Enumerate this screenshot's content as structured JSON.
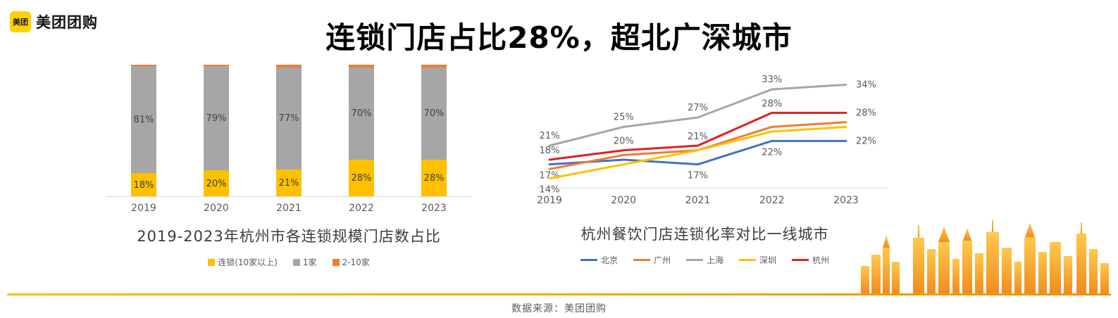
{
  "header": {
    "logo_badge": "美团",
    "logo_text": "美团团购",
    "title": "连锁门店占比28%，超北广深城市"
  },
  "footer": {
    "source": "数据来源：美团团购"
  },
  "colors": {
    "brand_yellow": "#FFD100",
    "bar_yellow": "#FFC000",
    "bar_gray": "#A6A6A6",
    "bar_orange": "#ED7D31",
    "line_blue": "#4472C4",
    "line_orange": "#ED7D31",
    "line_gray": "#A6A6A6",
    "line_yellow": "#FFC000",
    "line_red": "#E02020",
    "axis_gray": "#D9D9D9"
  },
  "chart_data": [
    {
      "type": "bar",
      "title": "2019-2023年杭州市各连锁规模门店数占比",
      "categories": [
        "2019",
        "2020",
        "2021",
        "2022",
        "2023"
      ],
      "stacked": true,
      "ylim": [
        0,
        100
      ],
      "grid": false,
      "legend_position": "bottom",
      "series": [
        {
          "name": "连锁(10家以上)",
          "color": "#FFC000",
          "values": [
            18,
            20,
            21,
            28,
            28
          ]
        },
        {
          "name": "1家",
          "color": "#A6A6A6",
          "values": [
            81,
            79,
            77,
            70,
            70
          ]
        },
        {
          "name": "2-10家",
          "color": "#ED7D31",
          "values": [
            1,
            1,
            2,
            2,
            2
          ]
        }
      ]
    },
    {
      "type": "line",
      "title": "杭州餐饮门店连锁化率对比一线城市",
      "x": [
        "2019",
        "2020",
        "2021",
        "2022",
        "2023"
      ],
      "ylim": [
        12,
        36
      ],
      "grid": false,
      "legend_position": "bottom",
      "series": [
        {
          "name": "北京",
          "color": "#4472C4",
          "values": [
            17,
            18,
            17,
            22,
            22
          ],
          "labels": [
            "17%",
            "",
            "17%",
            "22%",
            "22%"
          ],
          "label_dy": 20
        },
        {
          "name": "广州",
          "color": "#ED7D31",
          "values": [
            16,
            19,
            20,
            25,
            26
          ],
          "labels": [
            "",
            "",
            "",
            "",
            ""
          ],
          "label_dy": -9
        },
        {
          "name": "上海",
          "color": "#A6A6A6",
          "values": [
            21,
            25,
            27,
            33,
            34
          ],
          "labels": [
            "21%",
            "25%",
            "27%",
            "33%",
            "34%"
          ],
          "label_dy": -10
        },
        {
          "name": "深圳",
          "color": "#FFC000",
          "values": [
            14,
            17,
            20,
            24,
            25
          ],
          "labels": [
            "14%",
            "",
            "",
            "",
            ""
          ],
          "label_dy": 20
        },
        {
          "name": "杭州",
          "color": "#E02020",
          "values": [
            18,
            20,
            21,
            28,
            28
          ],
          "labels": [
            "18%",
            "20%",
            "21%",
            "28%",
            "28%"
          ],
          "label_dy": -9
        }
      ]
    }
  ]
}
